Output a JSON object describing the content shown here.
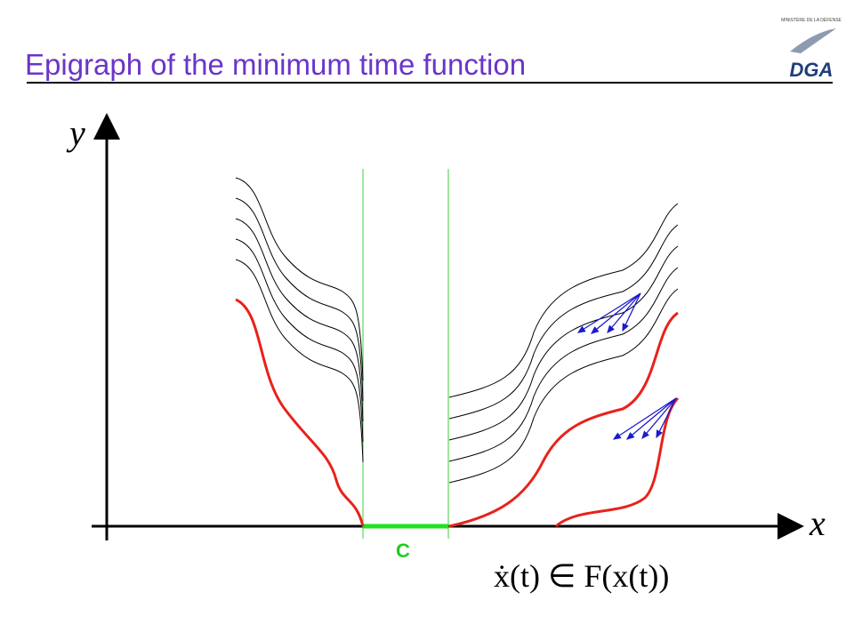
{
  "header": {
    "title": "Epigraph of the minimum time  function",
    "logo_caption": "MINISTÈRE DE LA DÉFENSE",
    "logo_text": "DGA"
  },
  "diagram": {
    "y_axis_label": "y",
    "x_axis_label": "x",
    "target_label": "C",
    "equation": "ẋ(t) ∈ F(x(t))"
  }
}
